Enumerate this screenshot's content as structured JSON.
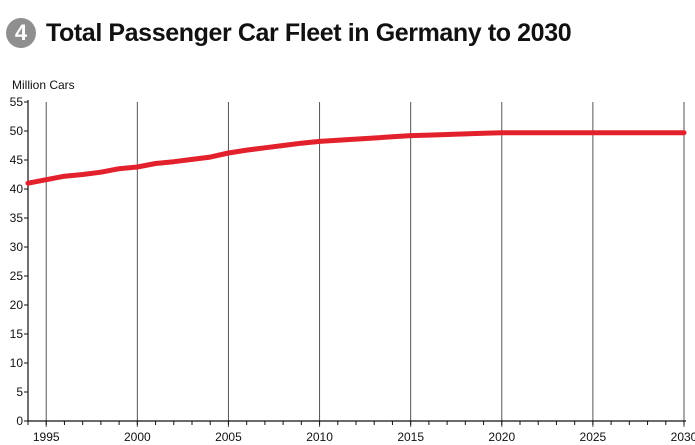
{
  "header": {
    "badge": "4",
    "title": "Total Passenger Car Fleet in Germany to 2030"
  },
  "chart_data": {
    "type": "line",
    "title": "Total Passenger Car Fleet in Germany to 2030",
    "ylabel": "Million Cars",
    "xlabel": "",
    "xlim": [
      1994,
      2030
    ],
    "ylim": [
      0,
      55
    ],
    "x_ticks": [
      1995,
      2000,
      2005,
      2010,
      2015,
      2020,
      2025,
      2030
    ],
    "x_tick_labels": [
      "1995",
      "2000",
      "2005",
      "2010",
      "2015",
      "2020",
      "2025",
      "2030"
    ],
    "y_ticks": [
      0,
      5,
      10,
      15,
      20,
      25,
      30,
      35,
      40,
      45,
      50,
      55
    ],
    "y_tick_labels": [
      "0",
      "5",
      "10",
      "15",
      "20",
      "25",
      "30",
      "35",
      "40",
      "45",
      "50",
      "55"
    ],
    "grid": "vertical",
    "line_color": "#e3212d",
    "series": [
      {
        "x": [
          1994,
          1995,
          1996,
          1997,
          1998,
          1999,
          2000,
          2001,
          2002,
          2003,
          2004,
          2005,
          2006,
          2007,
          2008,
          2009,
          2010,
          2011,
          2012,
          2013,
          2014,
          2015,
          2016,
          2017,
          2018,
          2019,
          2020,
          2021,
          2022,
          2023,
          2024,
          2025,
          2026,
          2027,
          2028,
          2029,
          2030
        ],
        "values": [
          41.0,
          41.6,
          42.2,
          42.5,
          42.9,
          43.5,
          43.8,
          44.4,
          44.7,
          45.1,
          45.5,
          46.2,
          46.7,
          47.1,
          47.5,
          47.9,
          48.2,
          48.4,
          48.6,
          48.8,
          49.0,
          49.2,
          49.3,
          49.4,
          49.5,
          49.6,
          49.7,
          49.7,
          49.7,
          49.7,
          49.7,
          49.7,
          49.7,
          49.7,
          49.7,
          49.7,
          49.7
        ]
      }
    ]
  }
}
